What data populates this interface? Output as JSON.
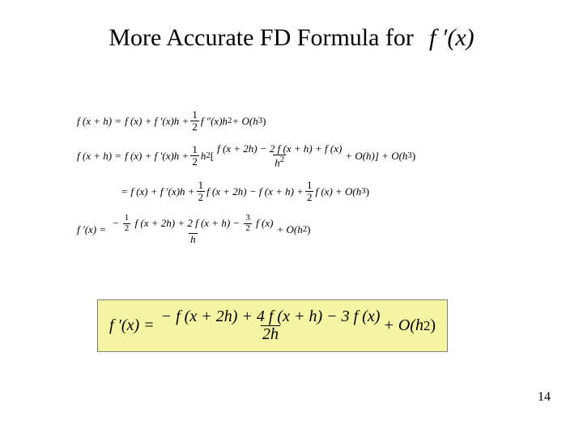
{
  "page_number": "14",
  "title": {
    "text": "More Accurate FD Formula for",
    "expr": "f ′(x)",
    "fontsize": 30,
    "color": "#000000"
  },
  "equations": {
    "fontsize": 13,
    "color": "#000000",
    "line1": {
      "lhs": "f (x + h) =",
      "rhs_a": "f (x) + f ′(x)h +",
      "half_num": "1",
      "half_den": "2",
      "rhs_b": "f ″(x)h",
      "sup2": "2",
      "rhs_c": "+ O(h",
      "sup3": "3",
      "rhs_d": ")"
    },
    "line2": {
      "lhs": "f (x + h) =",
      "rhs_a": "f (x) + f ′(x)h +",
      "half_num": "1",
      "half_den": "2",
      "rhs_b": "h",
      "sup2": "2",
      "rhs_c": "[",
      "frac2_num": "f (x + 2h) − 2 f (x + h) + f (x)",
      "frac2_den": "h",
      "frac2_den_sup": "2",
      "rhs_d": "+ O(h)] + O(h",
      "sup3": "3",
      "rhs_e": ")"
    },
    "line3": {
      "lhs": "=",
      "rhs_a": "f (x) + f ′(x)h +",
      "half_num": "1",
      "half_den": "2",
      "rhs_b": "f (x + 2h) − f (x + h) +",
      "half2_num": "1",
      "half2_den": "2",
      "rhs_c": "f (x) + O(h",
      "sup3": "3",
      "rhs_d": ")"
    },
    "line4": {
      "lhs": "f ′(x) =",
      "num_a_num": "1",
      "num_a_den": "2",
      "num_a": "−",
      "num_b": "f (x + 2h) + 2 f (x + h) −",
      "num_c_num": "3",
      "num_c_den": "2",
      "num_d": "f (x)",
      "den": "h",
      "rhs": "+ O(h",
      "sup2": "2",
      "rhs_b": ")"
    }
  },
  "result": {
    "background": "#f5f5a3",
    "border": "#808080",
    "fontsize": 20,
    "lhs": "f ′(x) =",
    "num": "− f (x + 2h) + 4 f (x + h) − 3 f (x)",
    "den": "2h",
    "rhs": "+ O(h",
    "sup2": "2",
    "rhs_b": ")"
  }
}
